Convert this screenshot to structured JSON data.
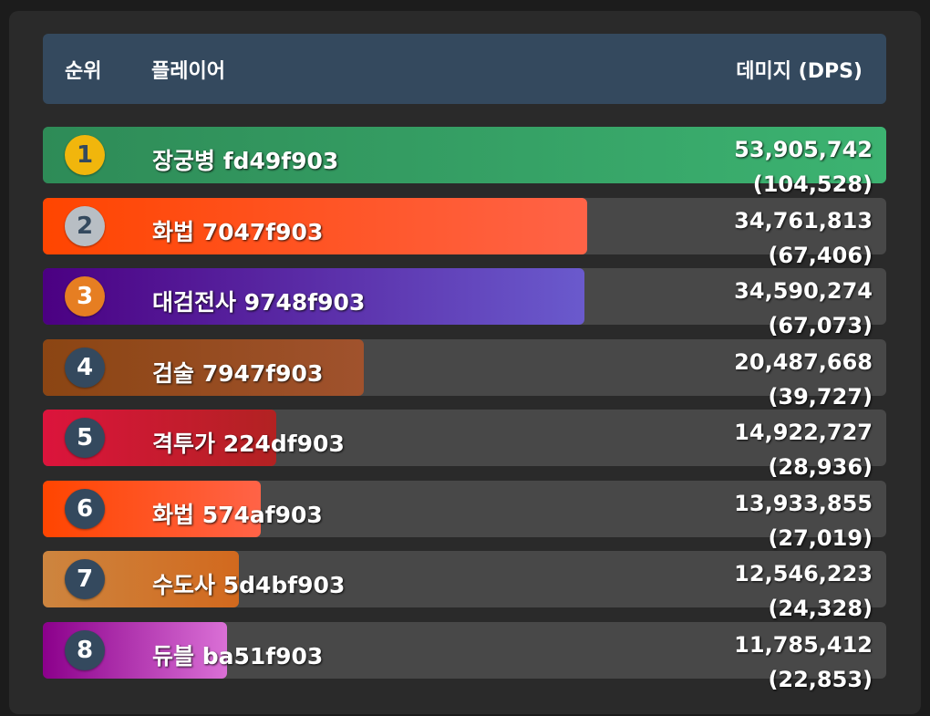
{
  "header": {
    "rank_label": "순위",
    "player_label": "플레이어",
    "damage_label": "데미지 (DPS)"
  },
  "rows": [
    {
      "rank": "1",
      "name": "장궁병 fd49f903",
      "damage": "53,905,742",
      "dps": "(104,528)",
      "share": 1.0,
      "badge_color": "#f1b60c",
      "badge_text_color": "#34495e",
      "bar_from": "#2e8b57",
      "bar_to": "#3cb371"
    },
    {
      "rank": "2",
      "name": "화법 7047f903",
      "damage": "34,761,813",
      "dps": "(67,406)",
      "share": 0.645,
      "badge_color": "#b8bec4",
      "badge_text_color": "#34495e",
      "bar_from": "#ff4500",
      "bar_to": "#ff6347"
    },
    {
      "rank": "3",
      "name": "대검전사 9748f903",
      "damage": "34,590,274",
      "dps": "(67,073)",
      "share": 0.642,
      "badge_color": "#e67e22",
      "badge_text_color": "#ffffff",
      "bar_from": "#4b0082",
      "bar_to": "#6a5acd"
    },
    {
      "rank": "4",
      "name": "검술 7947f903",
      "damage": "20,487,668",
      "dps": "(39,727)",
      "share": 0.381,
      "badge_color": "#34495e",
      "badge_text_color": "#ffffff",
      "bar_from": "#8b4513",
      "bar_to": "#a0522d"
    },
    {
      "rank": "5",
      "name": "격투가 224df903",
      "damage": "14,922,727",
      "dps": "(28,936)",
      "share": 0.277,
      "badge_color": "#34495e",
      "badge_text_color": "#ffffff",
      "bar_from": "#dc143c",
      "bar_to": "#b22222"
    },
    {
      "rank": "6",
      "name": "화법 574af903",
      "damage": "13,933,855",
      "dps": "(27,019)",
      "share": 0.258,
      "badge_color": "#34495e",
      "badge_text_color": "#ffffff",
      "bar_from": "#ff4500",
      "bar_to": "#ff6347"
    },
    {
      "rank": "7",
      "name": "수도사 5d4bf903",
      "damage": "12,546,223",
      "dps": "(24,328)",
      "share": 0.232,
      "badge_color": "#34495e",
      "badge_text_color": "#ffffff",
      "bar_from": "#cd853f",
      "bar_to": "#d2691e"
    },
    {
      "rank": "8",
      "name": "듀블 ba51f903",
      "damage": "11,785,412",
      "dps": "(22,853)",
      "share": 0.218,
      "badge_color": "#34495e",
      "badge_text_color": "#ffffff",
      "bar_from": "#8b008b",
      "bar_to": "#da70d6"
    }
  ]
}
